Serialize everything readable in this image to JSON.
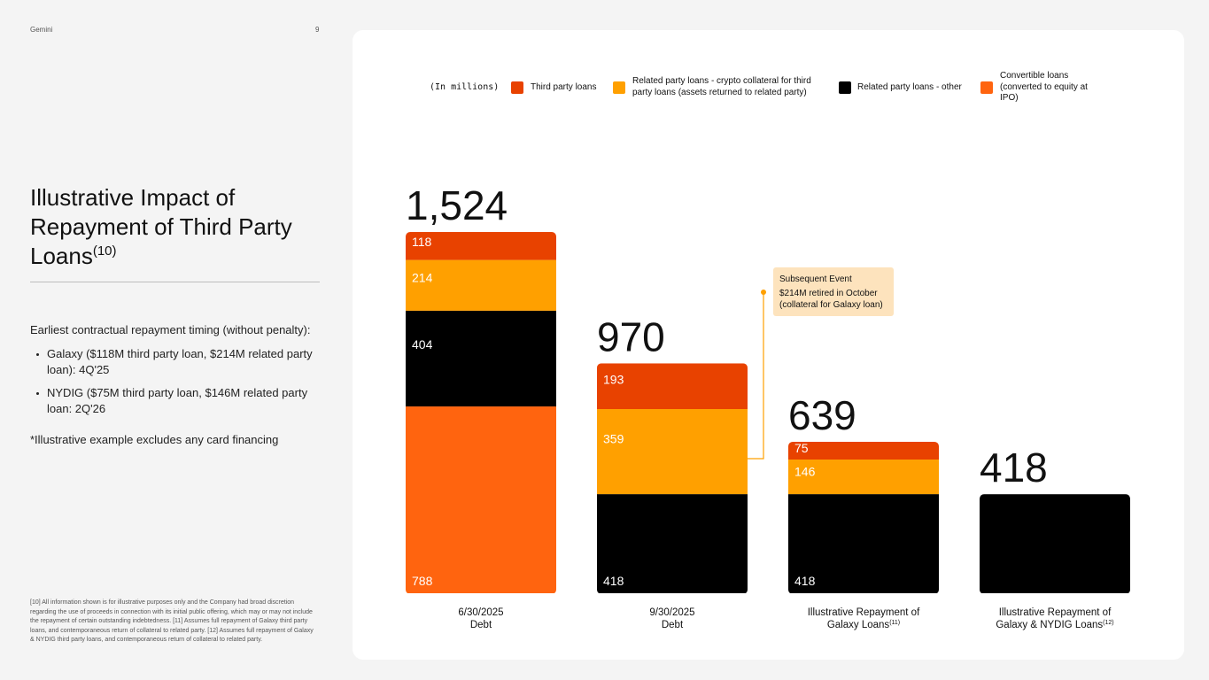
{
  "header": {
    "brand": "Gemini",
    "page_number": "9"
  },
  "left_panel": {
    "title": "Illustrative Impact of Repayment of Third Party Loans",
    "title_superscript": "(10)",
    "intro": "Earliest contractual repayment timing (without penalty):",
    "bullets": [
      "Galaxy ($118M third party loan, $214M related party loan): 4Q'25",
      "NYDIG ($75M third party loan, $146M related party loan: 2Q'26"
    ],
    "note": "*Illustrative example excludes any card financing",
    "footnote": "[10] All information shown is for illustrative purposes only and the Company had broad discretion regarding the use of proceeds in connection with its initial public offering, which may or may not include the repayment of certain outstanding indebtedness. [11] Assumes full repayment of Galaxy third party loans, and contemporaneous return of collateral to related party. [12] Assumes full repayment of Galaxy & NYDIG third party loans, and contemporaneous return of collateral to related party."
  },
  "colors": {
    "third_party": "#e84200",
    "related_crypto": "#ffa000",
    "related_other": "#000000",
    "convertible": "#ff640f",
    "callout_bg": "#fde3bd",
    "callout_line": "#ffa000"
  },
  "annotation": {
    "title": "Subsequent Event",
    "text": "$214M retired in October (collateral for Galaxy loan)"
  },
  "chart_data": {
    "type": "bar",
    "stacked": true,
    "units_label": "(In millions)",
    "categories": [
      "6/30/2025 Debt",
      "9/30/2025 Debt",
      "Illustrative Repayment of Galaxy Loans",
      "Illustrative Repayment of Galaxy & NYDIG Loans"
    ],
    "category_lines": [
      [
        "6/30/2025",
        "Debt"
      ],
      [
        "9/30/2025",
        "Debt"
      ],
      [
        "Illustrative Repayment of",
        "Galaxy Loans"
      ],
      [
        "Illustrative Repayment of",
        "Galaxy & NYDIG Loans"
      ]
    ],
    "category_superscripts": [
      "",
      "",
      "(11)",
      "(12)"
    ],
    "totals": [
      1524,
      970,
      639,
      418
    ],
    "total_labels": [
      "1,524",
      "970",
      "639",
      "418"
    ],
    "series": [
      {
        "name": "Convertible loans (converted to equity at IPO)",
        "color_key": "convertible",
        "values": [
          788,
          0,
          0,
          0
        ],
        "labels": [
          "788",
          "",
          "",
          ""
        ]
      },
      {
        "name": "Related party loans - other",
        "color_key": "related_other",
        "values": [
          404,
          418,
          418,
          418
        ],
        "labels": [
          "404",
          "418",
          "418",
          ""
        ]
      },
      {
        "name": "Related party loans - crypto collateral for third party loans (assets returned to related party)",
        "color_key": "related_crypto",
        "values": [
          214,
          359,
          146,
          0
        ],
        "labels": [
          "214",
          "359",
          "146",
          ""
        ]
      },
      {
        "name": "Third party loans",
        "color_key": "third_party",
        "values": [
          118,
          193,
          75,
          0
        ],
        "labels": [
          "118",
          "193",
          "75",
          ""
        ]
      }
    ],
    "legend_order": [
      3,
      2,
      1,
      0
    ],
    "legend_lines": [
      [
        "Third party loans"
      ],
      [
        "Related party loans - crypto collateral for third",
        "party loans (assets returned to related party)"
      ],
      [
        "Related party loans - other"
      ],
      [
        "Convertible loans",
        "(converted to equity at",
        "IPO)"
      ]
    ]
  }
}
